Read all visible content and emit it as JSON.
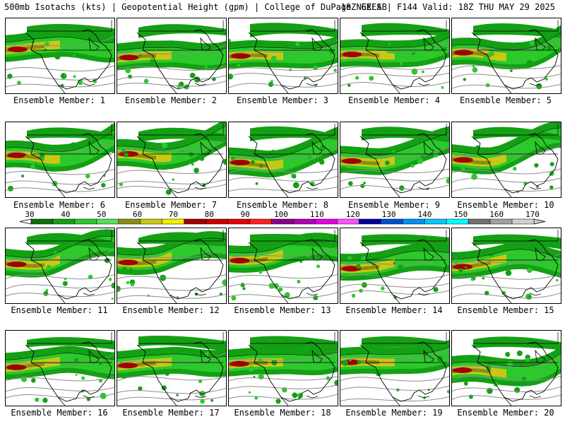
{
  "header": {
    "left": "500mb Isotachs (kts) | Geopotential Height (gpm) | College of DuPage NEXLAB",
    "right": "18Z GEFS | F144 Valid: 18Z THU MAY 29 2025"
  },
  "panels": [
    {
      "label": "Ensemble Member: 1"
    },
    {
      "label": "Ensemble Member: 2"
    },
    {
      "label": "Ensemble Member: 3"
    },
    {
      "label": "Ensemble Member: 4"
    },
    {
      "label": "Ensemble Member: 5"
    },
    {
      "label": "Ensemble Member: 6"
    },
    {
      "label": "Ensemble Member: 7"
    },
    {
      "label": "Ensemble Member: 8"
    },
    {
      "label": "Ensemble Member: 9"
    },
    {
      "label": "Ensemble Member: 10"
    },
    {
      "label": "Ensemble Member: 11"
    },
    {
      "label": "Ensemble Member: 12"
    },
    {
      "label": "Ensemble Member: 13"
    },
    {
      "label": "Ensemble Member: 14"
    },
    {
      "label": "Ensemble Member: 15"
    },
    {
      "label": "Ensemble Member: 16"
    },
    {
      "label": "Ensemble Member: 17"
    },
    {
      "label": "Ensemble Member: 18"
    },
    {
      "label": "Ensemble Member: 19"
    },
    {
      "label": "Ensemble Member: 20"
    }
  ],
  "colorbar": {
    "labels": [
      "30",
      "40",
      "50",
      "60",
      "70",
      "80",
      "90",
      "100",
      "110",
      "120",
      "130",
      "140",
      "150",
      "160",
      "170"
    ],
    "colors": [
      "#0a6e0a",
      "#14a014",
      "#2cc82c",
      "#55e055",
      "#8c8c14",
      "#c8c814",
      "#f0f000",
      "#a00000",
      "#c80000",
      "#e60000",
      "#ff2020",
      "#8c008c",
      "#b400b4",
      "#e600e6",
      "#ff50ff",
      "#0000a0",
      "#0050d0",
      "#0090f0",
      "#00c8ff",
      "#00ffff",
      "#707070",
      "#a0a0a0",
      "#d0d0d0"
    ]
  }
}
